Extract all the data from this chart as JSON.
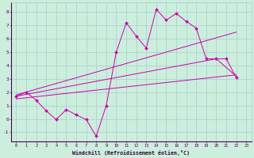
{
  "xlabel": "Windchill (Refroidissement éolien,°C)",
  "xlim": [
    -0.5,
    23.5
  ],
  "ylim": [
    -1.7,
    8.7
  ],
  "xticks": [
    0,
    1,
    2,
    3,
    4,
    5,
    6,
    7,
    8,
    9,
    10,
    11,
    12,
    13,
    14,
    15,
    16,
    17,
    18,
    19,
    20,
    21,
    22,
    23
  ],
  "yticks": [
    -1,
    0,
    1,
    2,
    3,
    4,
    5,
    6,
    7,
    8
  ],
  "bg_color": "#cceedd",
  "grid_color": "#aacccc",
  "line_color": "#cc00aa",
  "jagged_x": [
    0,
    1,
    2,
    3,
    4,
    5,
    6,
    7,
    8,
    9,
    10,
    11,
    12,
    13,
    14,
    15,
    16,
    17,
    18,
    19,
    20,
    21,
    22
  ],
  "jagged_y": [
    1.7,
    2.0,
    1.4,
    0.6,
    -0.05,
    0.7,
    0.3,
    -0.05,
    -1.3,
    1.0,
    5.0,
    7.2,
    6.2,
    5.3,
    8.2,
    7.4,
    7.9,
    7.3,
    6.8,
    4.5,
    4.5,
    4.5,
    3.1
  ],
  "line2_x": [
    0,
    22
  ],
  "line2_y": [
    1.8,
    6.5
  ],
  "line3_x": [
    0,
    20,
    22
  ],
  "line3_y": [
    1.7,
    4.5,
    3.2
  ],
  "line4_x": [
    0,
    22
  ],
  "line4_y": [
    1.5,
    3.3
  ]
}
